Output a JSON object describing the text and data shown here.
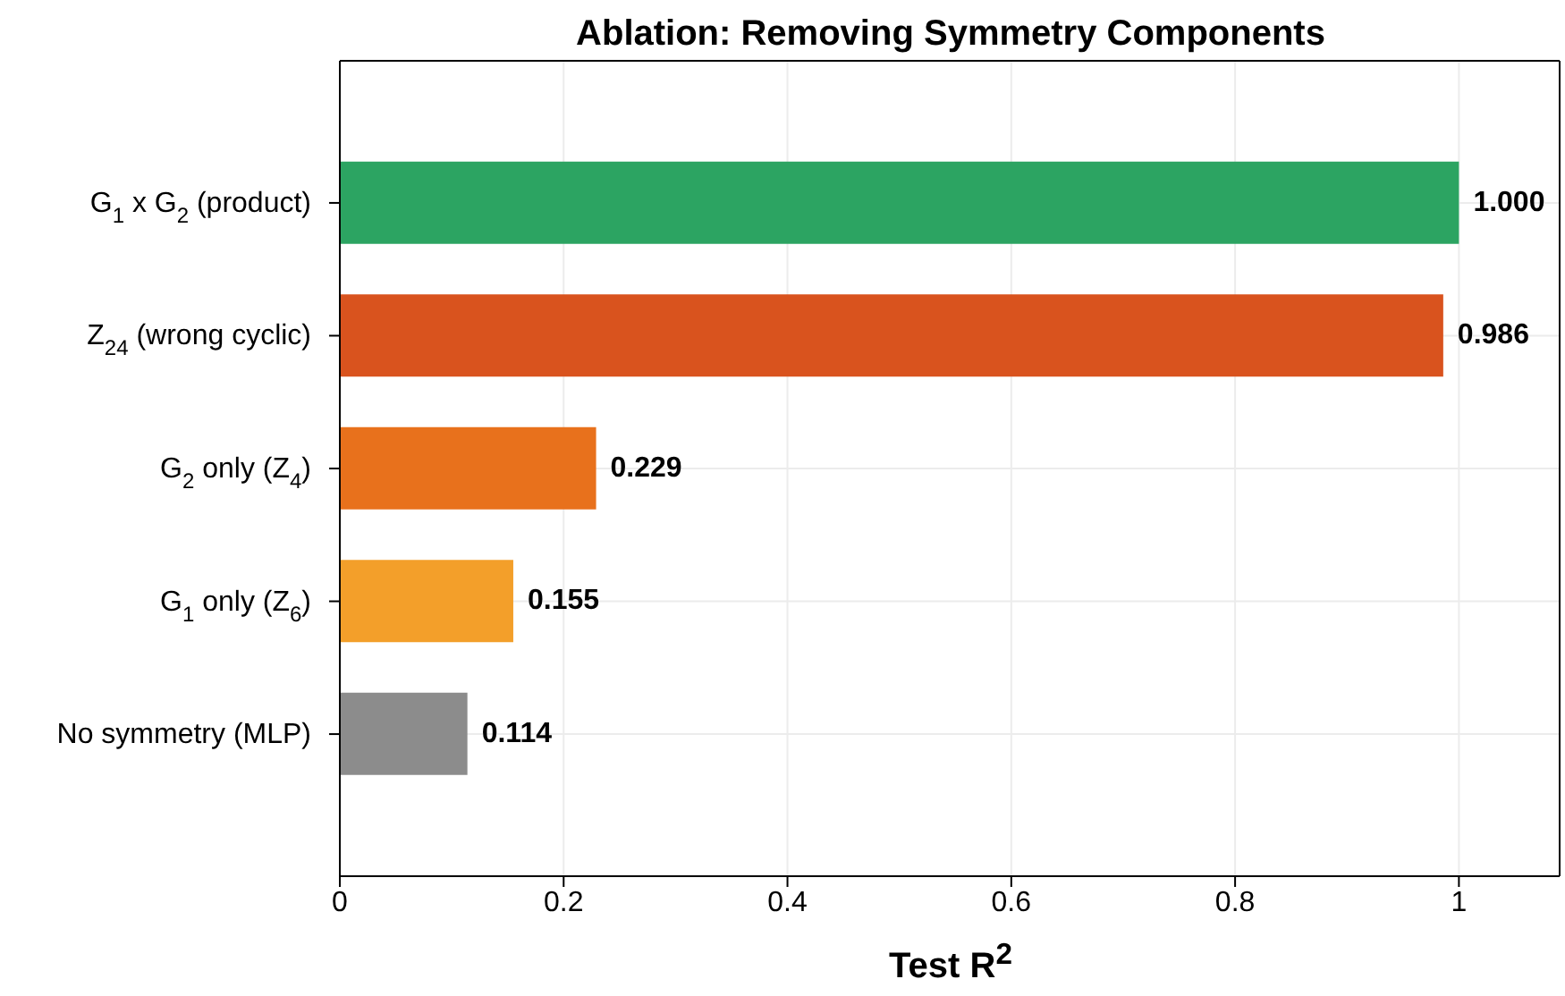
{
  "chart_data": {
    "type": "bar",
    "orientation": "horizontal",
    "title": "Ablation: Removing Symmetry Components",
    "xlabel": "Test R$^{2}$",
    "categories": [
      "G$_{1}$ x G$_{2}$ (product)",
      "Z$_{24}$ (wrong cyclic)",
      "G$_{2}$ only (Z$_{4}$)",
      "G$_{1}$ only (Z$_{6}$)",
      "No symmetry (MLP)"
    ],
    "values": [
      1.0,
      0.986,
      0.229,
      0.155,
      0.114
    ],
    "value_labels": [
      "1.000",
      "0.986",
      "0.229",
      "0.155",
      "0.114"
    ],
    "colors": [
      "#2ca462",
      "#d9531e",
      "#e8711c",
      "#f39f2a",
      "#8c8c8c"
    ],
    "xlim": [
      0,
      1.09
    ],
    "xticks": [
      0,
      0.2,
      0.4,
      0.6,
      0.8,
      1
    ],
    "grid": true
  }
}
